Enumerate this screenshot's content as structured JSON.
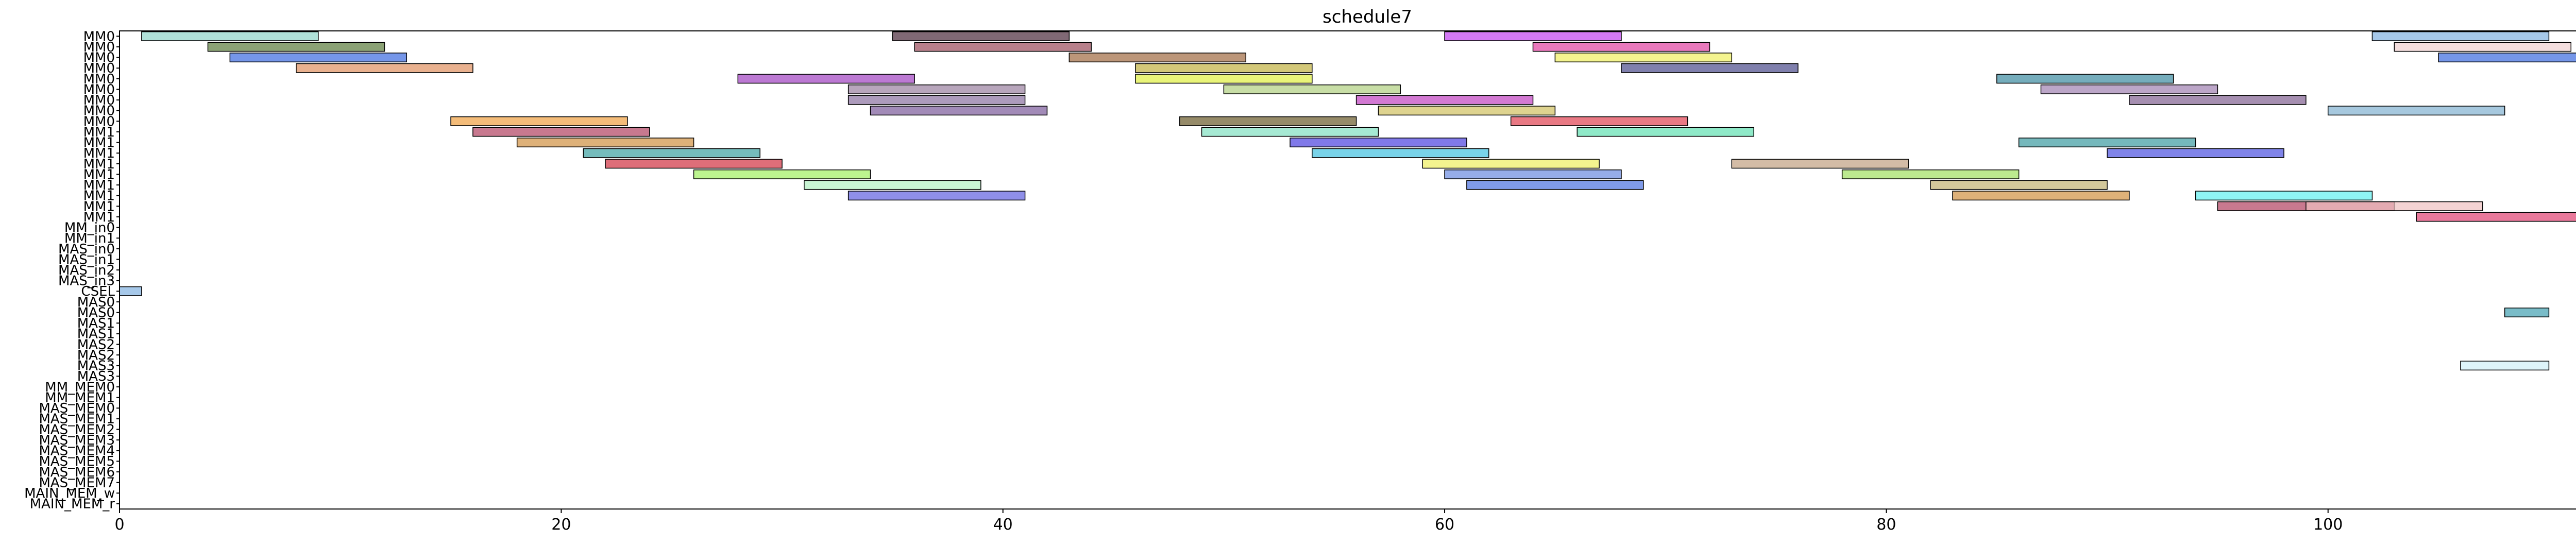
{
  "chart_data": {
    "type": "gantt",
    "title": "schedule7",
    "xlabel": "",
    "ylabel": "",
    "xlim": [
      0,
      113
    ],
    "x_ticks": [
      0,
      20,
      40,
      60,
      80,
      100
    ],
    "grid": false,
    "legend": "none",
    "rows": [
      "MM0",
      "MM0",
      "MM0",
      "MM0",
      "MM0",
      "MM0",
      "MM0",
      "MM0",
      "MM0",
      "MM1",
      "MM1",
      "MM1",
      "MM1",
      "MM1",
      "MM1",
      "MM1",
      "MM1",
      "MM1",
      "MM_in0",
      "MM_in1",
      "MAS_in0",
      "MAS_in1",
      "MAS_in2",
      "MAS_in3",
      "CSEL",
      "MAS0",
      "MAS0",
      "MAS1",
      "MAS1",
      "MAS2",
      "MAS2",
      "MAS3",
      "MAS3",
      "MM_MEM0",
      "MM_MEM1",
      "MAS_MEM0",
      "MAS_MEM1",
      "MAS_MEM2",
      "MAS_MEM3",
      "MAS_MEM4",
      "MAS_MEM5",
      "MAS_MEM6",
      "MAS_MEM7",
      "MAIN_MEM_w",
      "MAIN_MEM_r"
    ],
    "tasks": [
      {
        "row": 0,
        "start": 1,
        "end": 9,
        "color": "#8fd4c8"
      },
      {
        "row": 0,
        "start": 35,
        "end": 43,
        "color": "#4a2a3a"
      },
      {
        "row": 0,
        "start": 60,
        "end": 68,
        "color": "#c040f0"
      },
      {
        "row": 0,
        "start": 102,
        "end": 110,
        "color": "#80b0e0"
      },
      {
        "row": 1,
        "start": 4,
        "end": 12,
        "color": "#5a7a3a"
      },
      {
        "row": 1,
        "start": 36,
        "end": 44,
        "color": "#9a4a5a"
      },
      {
        "row": 1,
        "start": 64,
        "end": 72,
        "color": "#e040a0"
      },
      {
        "row": 1,
        "start": 103,
        "end": 111,
        "color": "#f0d0d0"
      },
      {
        "row": 2,
        "start": 5,
        "end": 13,
        "color": "#3a6ae0"
      },
      {
        "row": 2,
        "start": 43,
        "end": 51,
        "color": "#a06a40"
      },
      {
        "row": 2,
        "start": 65,
        "end": 73,
        "color": "#f0f060"
      },
      {
        "row": 2,
        "start": 105,
        "end": 113,
        "color": "#3a6ae0"
      },
      {
        "row": 3,
        "start": 8,
        "end": 16,
        "color": "#e09060"
      },
      {
        "row": 3,
        "start": 46,
        "end": 54,
        "color": "#c0b040"
      },
      {
        "row": 3,
        "start": 68,
        "end": 76,
        "color": "#4a4a8a"
      },
      {
        "row": 4,
        "start": 28,
        "end": 36,
        "color": "#a040c0"
      },
      {
        "row": 4,
        "start": 46,
        "end": 54,
        "color": "#e0f040"
      },
      {
        "row": 4,
        "start": 85,
        "end": 93,
        "color": "#3a8aa0"
      },
      {
        "row": 5,
        "start": 33,
        "end": 41,
        "color": "#9a80a0"
      },
      {
        "row": 5,
        "start": 50,
        "end": 58,
        "color": "#b0d080"
      },
      {
        "row": 5,
        "start": 87,
        "end": 95,
        "color": "#a080b0"
      },
      {
        "row": 6,
        "start": 33,
        "end": 41,
        "color": "#8a70a0"
      },
      {
        "row": 6,
        "start": 56,
        "end": 64,
        "color": "#c040c0"
      },
      {
        "row": 6,
        "start": 91,
        "end": 99,
        "color": "#806090"
      },
      {
        "row": 7,
        "start": 34,
        "end": 42,
        "color": "#7a5a9a"
      },
      {
        "row": 7,
        "start": 57,
        "end": 65,
        "color": "#d0c060"
      },
      {
        "row": 7,
        "start": 100,
        "end": 108,
        "color": "#80b0d0"
      },
      {
        "row": 8,
        "start": 15,
        "end": 23,
        "color": "#f0a040"
      },
      {
        "row": 8,
        "start": 48,
        "end": 56,
        "color": "#6a5a2a"
      },
      {
        "row": 8,
        "start": 63,
        "end": 71,
        "color": "#e04050"
      },
      {
        "row": 9,
        "start": 16,
        "end": 24,
        "color": "#b04060"
      },
      {
        "row": 9,
        "start": 49,
        "end": 57,
        "color": "#80e0c0"
      },
      {
        "row": 9,
        "start": 66,
        "end": 74,
        "color": "#60e0b0"
      },
      {
        "row": 10,
        "start": 18,
        "end": 26,
        "color": "#d09040"
      },
      {
        "row": 10,
        "start": 53,
        "end": 61,
        "color": "#4a40e0"
      },
      {
        "row": 10,
        "start": 86,
        "end": 94,
        "color": "#3a9aa0"
      },
      {
        "row": 11,
        "start": 21,
        "end": 29,
        "color": "#3aa0a0"
      },
      {
        "row": 11,
        "start": 54,
        "end": 62,
        "color": "#40c0e0"
      },
      {
        "row": 11,
        "start": 90,
        "end": 98,
        "color": "#4a50e0"
      },
      {
        "row": 12,
        "start": 22,
        "end": 30,
        "color": "#d03040"
      },
      {
        "row": 12,
        "start": 59,
        "end": 67,
        "color": "#f0f060"
      },
      {
        "row": 12,
        "start": 73,
        "end": 81,
        "color": "#c0a080"
      },
      {
        "row": 13,
        "start": 26,
        "end": 34,
        "color": "#a0f060"
      },
      {
        "row": 13,
        "start": 60,
        "end": 68,
        "color": "#6a8ae0"
      },
      {
        "row": 13,
        "start": 78,
        "end": 86,
        "color": "#a0e060"
      },
      {
        "row": 14,
        "start": 31,
        "end": 39,
        "color": "#b0f0c0"
      },
      {
        "row": 14,
        "start": 61,
        "end": 69,
        "color": "#4a70e0"
      },
      {
        "row": 14,
        "start": 82,
        "end": 90,
        "color": "#c0b070"
      },
      {
        "row": 15,
        "start": 33,
        "end": 41,
        "color": "#6060e0"
      },
      {
        "row": 15,
        "start": 83,
        "end": 91,
        "color": "#d09040"
      },
      {
        "row": 15,
        "start": 94,
        "end": 102,
        "color": "#60f0f0"
      },
      {
        "row": 16,
        "start": 95,
        "end": 103,
        "color": "#b04060"
      },
      {
        "row": 16,
        "start": 99,
        "end": 107,
        "color": "#f0c0c0"
      },
      {
        "row": 17,
        "start": 104,
        "end": 112,
        "color": "#e04070"
      },
      {
        "row": 24,
        "start": 0,
        "end": 1,
        "color": "#80b0e0"
      },
      {
        "row": 26,
        "start": 108,
        "end": 110,
        "color": "#40a0b0"
      },
      {
        "row": 31,
        "start": 106,
        "end": 110,
        "color": "#d0f0f8"
      }
    ]
  }
}
